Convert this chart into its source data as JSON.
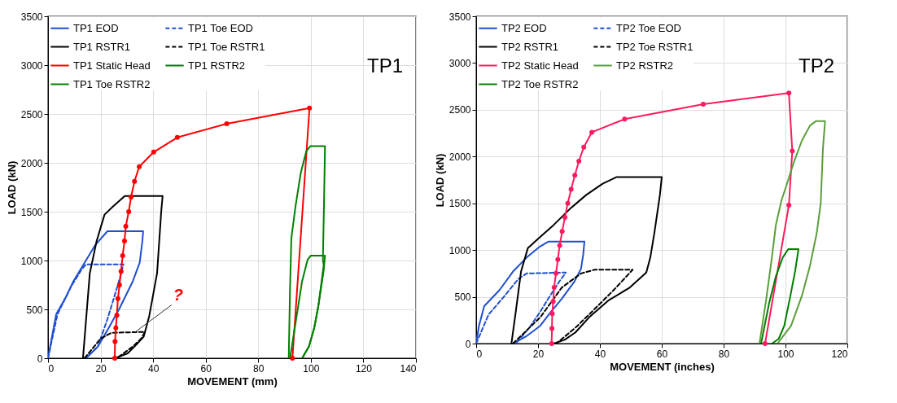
{
  "chart_data": [
    {
      "type": "line",
      "xlabel": "MOVEMENT (mm)",
      "ylabel": "LOAD (kN)",
      "xlim": [
        0,
        140
      ],
      "ylim": [
        0,
        3500
      ],
      "xticks": [
        0,
        20,
        40,
        60,
        80,
        100,
        120,
        140
      ],
      "yticks": [
        0,
        500,
        1000,
        1500,
        2000,
        2500,
        3000,
        3500
      ],
      "grid": true,
      "legend": "top left",
      "annotations": [
        "TP1",
        {
          "text": "?",
          "x": 33,
          "y": 265
        }
      ],
      "series": [
        {
          "name": "TP1  EOD",
          "color": "#1f4fd0",
          "line_style": "solid",
          "x": [
            0,
            3.1,
            6.7,
            9.7,
            13.3,
            18,
            22.6,
            36.2,
            35.9,
            34.9,
            32.3,
            27.2,
            23.1,
            19,
            14.4
          ],
          "values": [
            0,
            450,
            620,
            790,
            950,
            1160,
            1300,
            1300,
            1200,
            980,
            790,
            510,
            310,
            120,
            0
          ]
        },
        {
          "name": "TP1 Toe EOD",
          "color": "#1f4fd0",
          "line_style": "dashed",
          "x": [
            0,
            3.6,
            8.7,
            12.8,
            14.4,
            28.7,
            26.7,
            22.6,
            19,
            14.4
          ],
          "values": [
            0,
            450,
            730,
            910,
            960,
            960,
            760,
            400,
            120,
            0
          ]
        },
        {
          "name": "TP1 RSTR1",
          "color": "#000000",
          "line_style": "solid",
          "x": [
            13.3,
            15.9,
            18.5,
            21.5,
            24.6,
            29.2,
            43.6,
            43.1,
            41.5,
            38.5,
            36.4,
            33.3,
            30.3,
            25.6
          ],
          "values": [
            0,
            870,
            1200,
            1470,
            1550,
            1660,
            1660,
            1510,
            870,
            430,
            220,
            130,
            50,
            0
          ]
        },
        {
          "name": "TP1 Toe RSTR1",
          "color": "#000000",
          "line_style": "dashed",
          "x": [
            13.9,
            20,
            24.1,
            36.9,
            35.4,
            32.3,
            26.2
          ],
          "values": [
            0,
            200,
            260,
            270,
            200,
            120,
            0
          ]
        },
        {
          "name": "TP1 Static Head",
          "color": "#ff0000",
          "line_style": "solid",
          "marker": "circle",
          "x": [
            25.4,
            25.5,
            25.8,
            26.2,
            26.6,
            27.2,
            27.8,
            28.4,
            29.1,
            29.6,
            30.7,
            31.6,
            32.9,
            34.7,
            40.2,
            49.2,
            68,
            99.5,
            93
          ],
          "values": [
            0,
            170,
            310,
            440,
            610,
            750,
            890,
            1050,
            1200,
            1350,
            1500,
            1650,
            1810,
            1960,
            2110,
            2260,
            2400,
            2560,
            0
          ]
        },
        {
          "name": "TP1 RSTR2",
          "color": "#008000",
          "line_style": "solid",
          "x": [
            91.6,
            92.1,
            92.6,
            94.2,
            96.2,
            98.3,
            99.8,
            105.4,
            105,
            104.6,
            104.9,
            102.9,
            101.3,
            99.3,
            96.7
          ],
          "values": [
            0,
            730,
            1230,
            1560,
            1900,
            2120,
            2170,
            2170,
            1560,
            1010,
            950,
            540,
            310,
            120,
            0
          ]
        },
        {
          "name": "TP1 Toe RSTR2",
          "color": "#008000",
          "line_style": "solid",
          "x": [
            92.1,
            94.7,
            96.7,
            98.8,
            100,
            105.4,
            104.9,
            102.9,
            101.3,
            99.3,
            96.7
          ],
          "values": [
            0,
            450,
            790,
            1010,
            1050,
            1050,
            900,
            540,
            310,
            120,
            0
          ]
        }
      ]
    },
    {
      "type": "line",
      "xlabel": "MOVEMENT (inches)",
      "ylabel": "LOAD (kN)",
      "xlim": [
        0,
        120
      ],
      "ylim": [
        0,
        3500
      ],
      "xticks": [
        0,
        20,
        40,
        60,
        80,
        100,
        120
      ],
      "yticks": [
        0,
        500,
        1000,
        1500,
        2000,
        2500,
        3000,
        3500
      ],
      "grid": true,
      "legend": "top left",
      "annotations": [
        "TP2"
      ],
      "series": [
        {
          "name": "TP2  EOD",
          "color": "#1f4fd0",
          "line_style": "solid",
          "x": [
            0,
            0.9,
            2.6,
            7.5,
            11.9,
            16.3,
            20.7,
            23.3,
            35,
            34.6,
            33.9,
            31.7,
            27.7,
            24.2,
            20.7,
            16.3,
            11.9
          ],
          "values": [
            0,
            190,
            400,
            570,
            770,
            920,
            1040,
            1090,
            1090,
            950,
            800,
            660,
            480,
            340,
            190,
            80,
            0
          ]
        },
        {
          "name": "TP2 Toe EOD",
          "color": "#1f4fd0",
          "line_style": "dashed",
          "x": [
            0,
            4,
            9.2,
            13.6,
            16.3,
            29,
            26.8,
            23.3,
            20.7,
            17.2,
            12.8
          ],
          "values": [
            0,
            310,
            510,
            690,
            750,
            760,
            660,
            480,
            340,
            170,
            0
          ]
        },
        {
          "name": "TP2  RSTR1",
          "color": "#000000",
          "line_style": "solid",
          "x": [
            11.4,
            12.8,
            14.5,
            16.7,
            20.7,
            25.1,
            30.3,
            35.6,
            40.9,
            45.3,
            60,
            59.4,
            57.6,
            56.3,
            55,
            49.7,
            42.7,
            36.5,
            32.1,
            28.6,
            25.1
          ],
          "values": [
            0,
            340,
            770,
            1020,
            1140,
            1270,
            1440,
            1590,
            1710,
            1780,
            1780,
            1590,
            1180,
            920,
            760,
            600,
            460,
            280,
            120,
            40,
            0
          ]
        },
        {
          "name": "TP2 Toe RSTR1",
          "color": "#000000",
          "line_style": "dashed",
          "x": [
            11.9,
            20.7,
            27.7,
            33.9,
            38.3,
            50.6,
            44.4,
            37.4,
            32.1,
            25.9
          ],
          "values": [
            0,
            280,
            600,
            750,
            790,
            790,
            570,
            340,
            170,
            0
          ]
        },
        {
          "name": "TP2 Static Head",
          "color": "#ff1a5e",
          "line_style": "solid",
          "marker": "circle",
          "x": [
            24.4,
            24.5,
            24.6,
            24.9,
            25.2,
            25.8,
            26.4,
            27,
            27.8,
            28.7,
            29.6,
            30.7,
            31.9,
            33.2,
            34.8,
            37.4,
            48,
            73.4,
            101.1,
            102.2,
            101.1,
            93.4
          ],
          "values": [
            0,
            160,
            320,
            450,
            600,
            750,
            900,
            1050,
            1200,
            1350,
            1500,
            1650,
            1800,
            1950,
            2100,
            2260,
            2400,
            2560,
            2680,
            2060,
            1480,
            0
          ]
        },
        {
          "name": "TP2 RSTR2",
          "color": "#5a9e3a",
          "line_style": "solid",
          "x": [
            91.6,
            93.8,
            95.6,
            96.9,
            98.7,
            100.4,
            102.6,
            105.3,
            107.9,
            109.9,
            112.8,
            112.1,
            111.4,
            110.1,
            107.9,
            105.3,
            101.8,
            97.4
          ],
          "values": [
            0,
            480,
            920,
            1270,
            1530,
            1700,
            1930,
            2170,
            2330,
            2380,
            2380,
            2080,
            1500,
            1180,
            830,
            510,
            190,
            0
          ]
        },
        {
          "name": "TP2 Toe RSTR2",
          "color": "#008000",
          "line_style": "solid",
          "x": [
            92.1,
            94.7,
            96.9,
            99.1,
            100.9,
            104.2,
            103.1,
            101.4,
            99.6,
            97.8,
            95.6
          ],
          "values": [
            0,
            430,
            720,
            920,
            1010,
            1010,
            770,
            480,
            190,
            50,
            0
          ]
        }
      ]
    }
  ]
}
